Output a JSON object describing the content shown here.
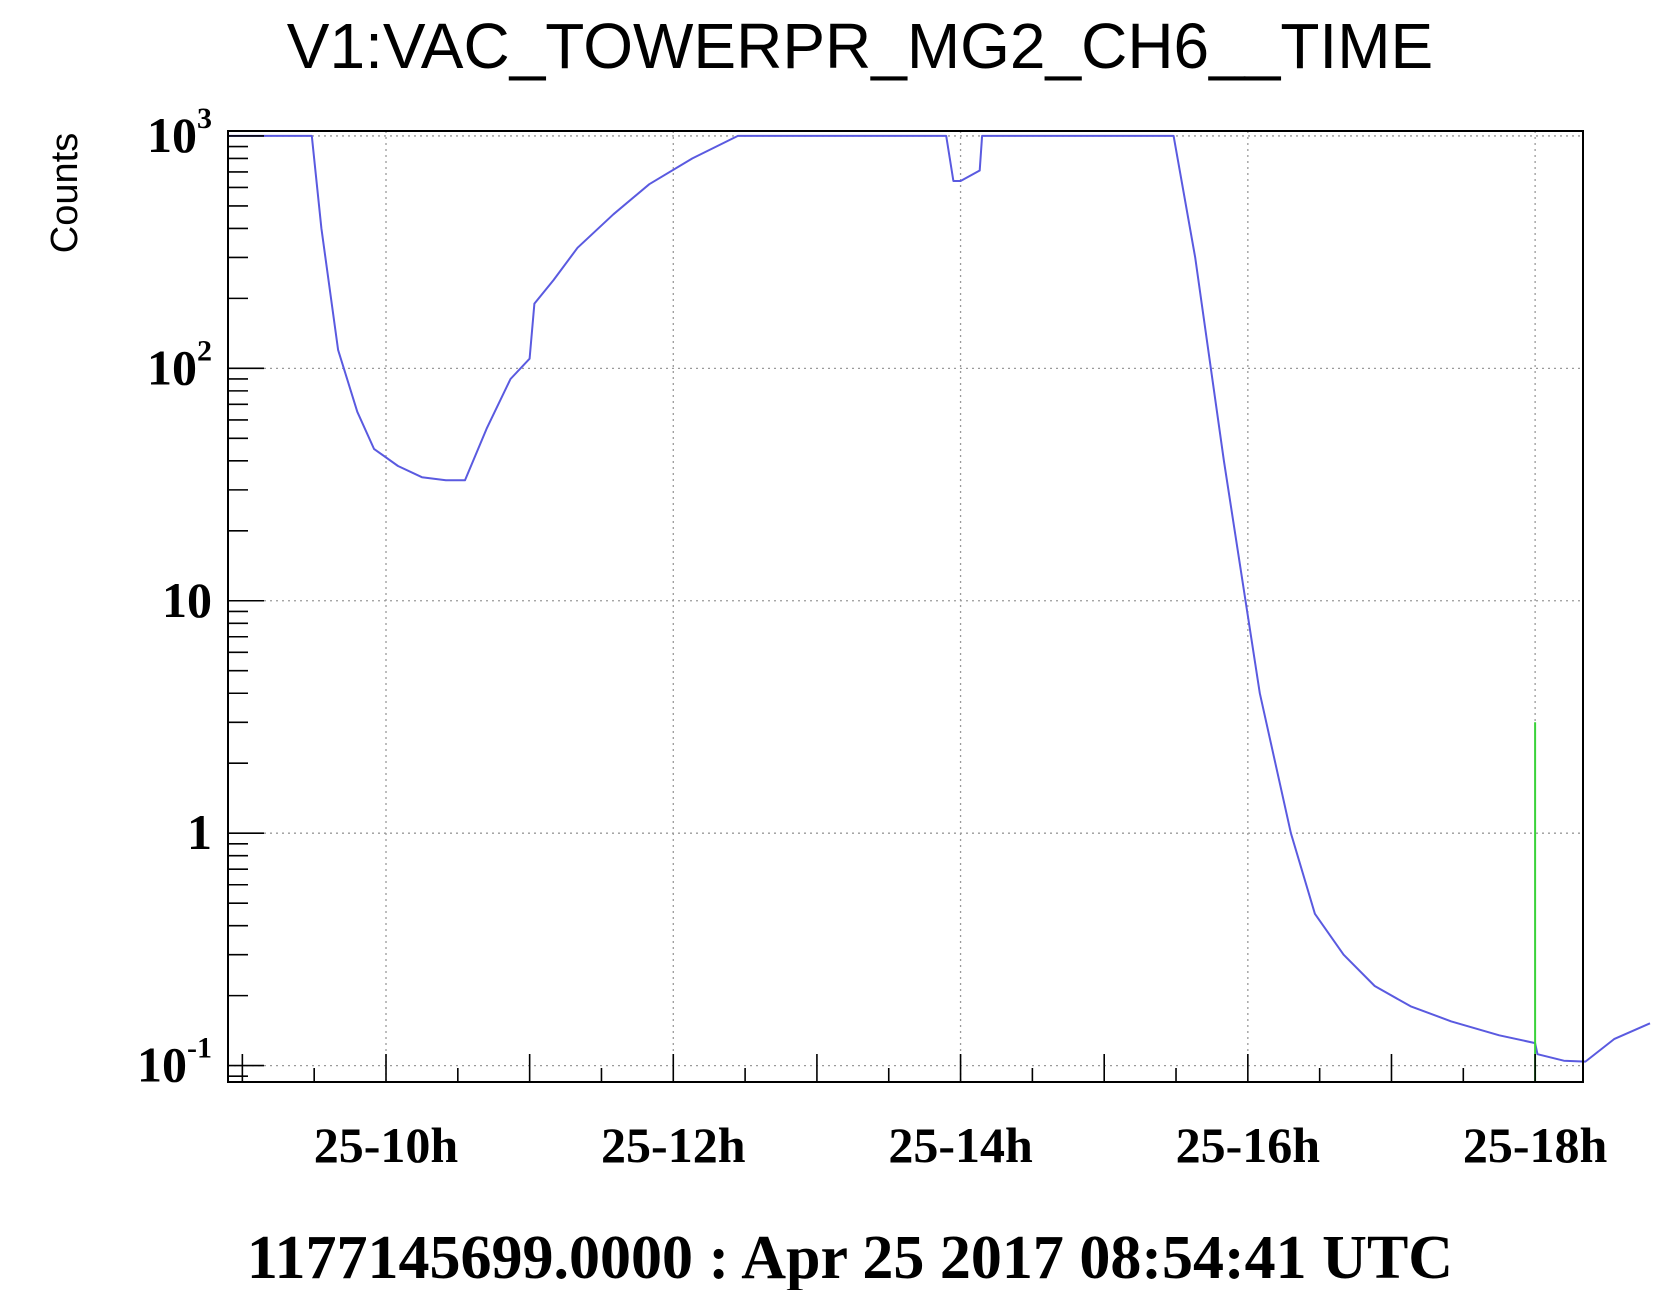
{
  "chart_data": {
    "type": "line",
    "title": "V1:VAC_TOWERPR_MG2_CH6__TIME",
    "xlabel": "",
    "ylabel": "Counts",
    "x_scale": "time",
    "y_scale": "log",
    "xlim": [
      "2017-04-25T08:54",
      "2017-04-25T18:20"
    ],
    "ylim": [
      0.085,
      1050
    ],
    "grid": true,
    "x_ticks": [
      {
        "label": "25-10h",
        "x": "2017-04-25T10:00"
      },
      {
        "label": "25-12h",
        "x": "2017-04-25T12:00"
      },
      {
        "label": "25-14h",
        "x": "2017-04-25T14:00"
      },
      {
        "label": "25-16h",
        "x": "2017-04-25T16:00"
      },
      {
        "label": "25-18h",
        "x": "2017-04-25T18:00"
      }
    ],
    "y_ticks": [
      {
        "base": "10",
        "exp": "3",
        "value": 1000
      },
      {
        "base": "10",
        "exp": "2",
        "value": 100
      },
      {
        "base": "10",
        "exp": "",
        "value": 10
      },
      {
        "base": "1",
        "exp": "",
        "value": 1
      },
      {
        "base": "10",
        "exp": "-1",
        "value": 0.1
      }
    ],
    "series": [
      {
        "color": "#5a5ae0",
        "points": [
          [
            "2017-04-25T08:54",
            1000
          ],
          [
            "2017-04-25T09:29",
            1000
          ],
          [
            "2017-04-25T09:33",
            400
          ],
          [
            "2017-04-25T09:40",
            120
          ],
          [
            "2017-04-25T09:48",
            65
          ],
          [
            "2017-04-25T09:55",
            45
          ],
          [
            "2017-04-25T10:05",
            38
          ],
          [
            "2017-04-25T10:15",
            34
          ],
          [
            "2017-04-25T10:25",
            33
          ],
          [
            "2017-04-25T10:33",
            33
          ],
          [
            "2017-04-25T10:42",
            55
          ],
          [
            "2017-04-25T10:52",
            90
          ],
          [
            "2017-04-25T11:00",
            110
          ],
          [
            "2017-04-25T11:02",
            190
          ],
          [
            "2017-04-25T11:10",
            240
          ],
          [
            "2017-04-25T11:20",
            330
          ],
          [
            "2017-04-25T11:35",
            460
          ],
          [
            "2017-04-25T11:50",
            620
          ],
          [
            "2017-04-25T12:08",
            800
          ],
          [
            "2017-04-25T12:27",
            1000
          ],
          [
            "2017-04-25T13:54",
            1000
          ],
          [
            "2017-04-25T13:57",
            640
          ],
          [
            "2017-04-25T14:00",
            640
          ],
          [
            "2017-04-25T14:08",
            710
          ],
          [
            "2017-04-25T14:09",
            1000
          ],
          [
            "2017-04-25T15:29",
            1000
          ],
          [
            "2017-04-25T15:38",
            300
          ],
          [
            "2017-04-25T15:50",
            40
          ],
          [
            "2017-04-25T16:05",
            4
          ],
          [
            "2017-04-25T16:18",
            1
          ],
          [
            "2017-04-25T16:28",
            0.45
          ],
          [
            "2017-04-25T16:40",
            0.3
          ],
          [
            "2017-04-25T16:53",
            0.22
          ],
          [
            "2017-04-25T17:08",
            0.18
          ],
          [
            "2017-04-25T17:25",
            0.155
          ],
          [
            "2017-04-25T17:45",
            0.135
          ],
          [
            "2017-04-25T18:00",
            0.125
          ],
          [
            "2017-04-25T18:01",
            0.112
          ],
          [
            "2017-04-25T18:12",
            0.105
          ],
          [
            "2017-04-25T18:21",
            0.104
          ],
          [
            "2017-04-25T18:33",
            0.13
          ],
          [
            "2017-04-25T18:48",
            0.152
          ]
        ]
      },
      {
        "color": "#3ad23a",
        "points": [
          [
            "2017-04-25T18:00",
            0.085
          ],
          [
            "2017-04-25T18:00",
            3
          ]
        ]
      }
    ]
  },
  "footer": {
    "timestamp": "1177145699.0000 : Apr 25 2017 08:54:41 UTC"
  }
}
